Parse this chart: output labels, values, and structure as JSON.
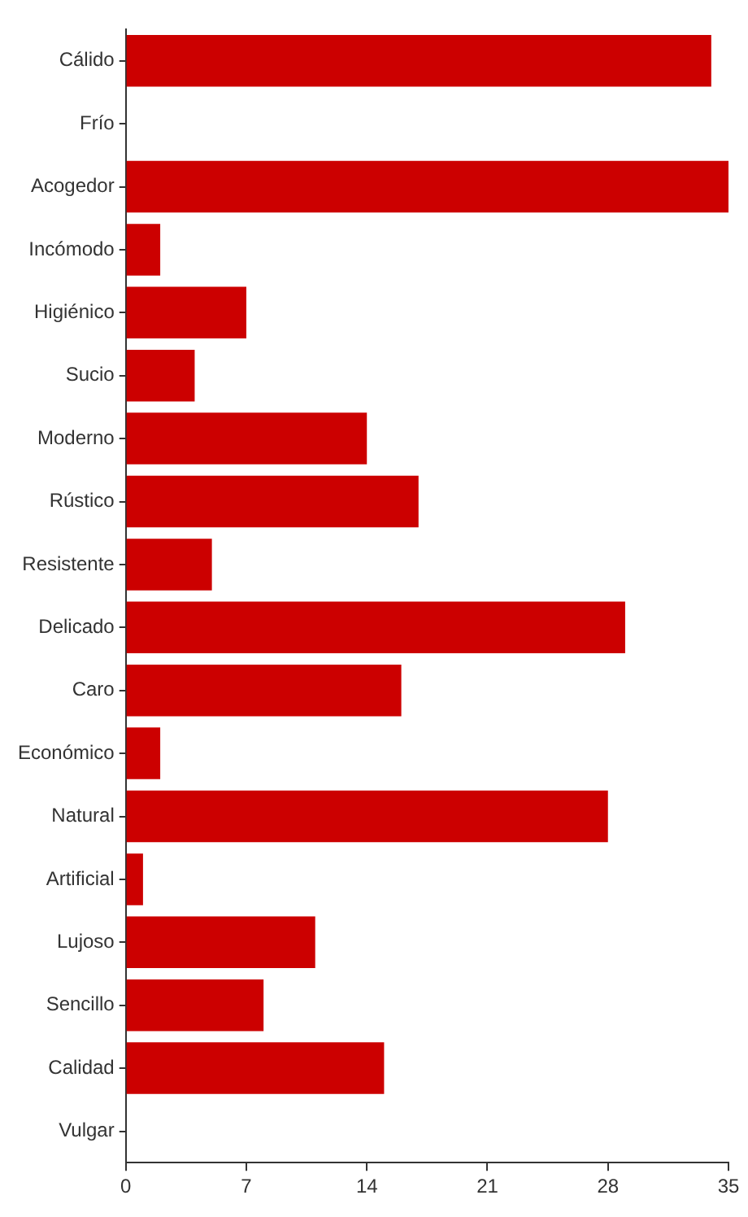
{
  "chart_data": {
    "type": "bar",
    "orientation": "horizontal",
    "categories": [
      "Cálido",
      "Frío",
      "Acogedor",
      "Incómodo",
      "Higiénico",
      "Sucio",
      "Moderno",
      "Rústico",
      "Resistente",
      "Delicado",
      "Caro",
      "Económico",
      "Natural",
      "Artificial",
      "Lujoso",
      "Sencillo",
      "Calidad",
      "Vulgar"
    ],
    "values": [
      34,
      0,
      35,
      2,
      7,
      4,
      14,
      17,
      5,
      29,
      16,
      2,
      28,
      1,
      11,
      8,
      15,
      0
    ],
    "color": "#cc0000",
    "xlim": [
      0,
      35
    ],
    "xticks": [
      0,
      7,
      14,
      21,
      28,
      35
    ],
    "grid": false,
    "legend": false
  }
}
